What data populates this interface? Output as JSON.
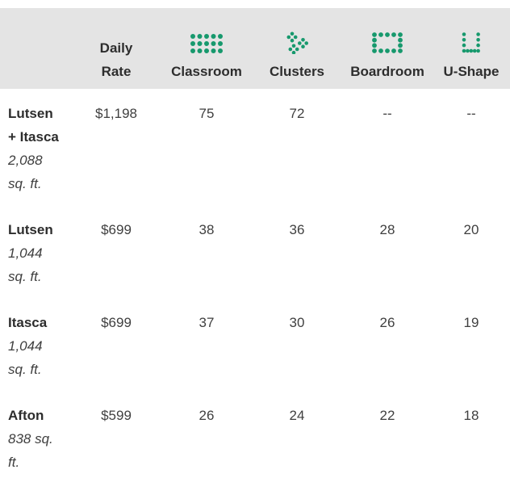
{
  "accent_color": "#17996d",
  "header_bg": "#e4e4e4",
  "header": {
    "columns": [
      {
        "key": "name",
        "label": "",
        "icon": null
      },
      {
        "key": "daily_rate",
        "label": "Daily Rate",
        "icon": null
      },
      {
        "key": "classroom",
        "label": "Classroom",
        "icon": "classroom-dots-icon"
      },
      {
        "key": "clusters",
        "label": "Clusters",
        "icon": "clusters-dots-icon"
      },
      {
        "key": "boardroom",
        "label": "Boardroom",
        "icon": "boardroom-dots-icon"
      },
      {
        "key": "ushape",
        "label": "U-Shape",
        "icon": "ushape-dots-icon"
      }
    ]
  },
  "rows": [
    {
      "name": "Lutsen + Itasca",
      "size": "2,088 sq. ft.",
      "daily_rate": "$1,198",
      "classroom": "75",
      "clusters": "72",
      "boardroom": "--",
      "ushape": "--"
    },
    {
      "name": "Lutsen",
      "size": "1,044 sq. ft.",
      "daily_rate": "$699",
      "classroom": "38",
      "clusters": "36",
      "boardroom": "28",
      "ushape": "20"
    },
    {
      "name": "Itasca",
      "size": "1,044 sq. ft.",
      "daily_rate": "$699",
      "classroom": "37",
      "clusters": "30",
      "boardroom": "26",
      "ushape": "19"
    },
    {
      "name": "Afton",
      "size": "838 sq. ft.",
      "daily_rate": "$599",
      "classroom": "26",
      "clusters": "24",
      "boardroom": "22",
      "ushape": "18"
    }
  ]
}
